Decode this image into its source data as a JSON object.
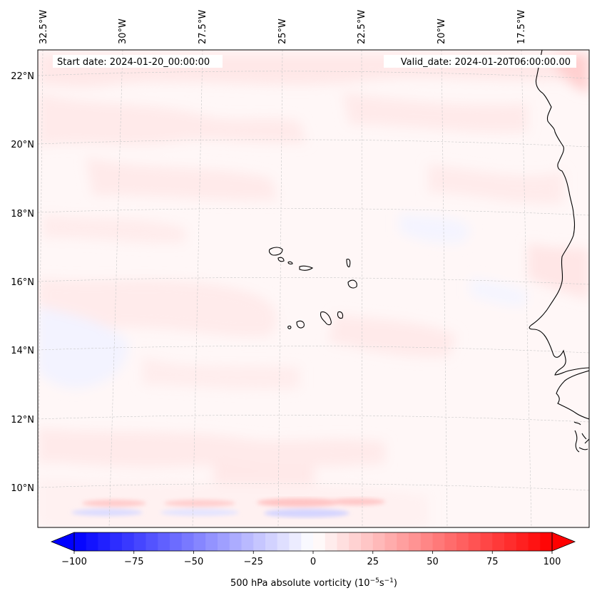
{
  "header": {
    "start_date": "Start date: 2024-01-20_00:00:00",
    "valid_date": "Valid_date: 2024-01-20T06:00:00.00"
  },
  "longitude_labels": [
    "32.5°W",
    "30°W",
    "27.5°W",
    "25°W",
    "22.5°W",
    "20°W",
    "17.5°W"
  ],
  "latitude_labels": [
    "22°N",
    "20°N",
    "18°N",
    "16°N",
    "14°N",
    "12°N",
    "10°N"
  ],
  "colorbar": {
    "label_prefix": "500 hPa absolute vorticity (10",
    "label_exp1": "−5",
    "label_mid": "s",
    "label_exp2": "−1",
    "label_suffix": ")",
    "ticks": [
      "−100",
      "−75",
      "−50",
      "−25",
      "0",
      "25",
      "50",
      "75",
      "100"
    ],
    "vmin": -100,
    "vmax": 100,
    "n_levels": 41,
    "colormap": "bwr"
  },
  "colors": {
    "low": "#0000ff",
    "mid": "#ffffff",
    "high": "#ff0000",
    "coastline": "#000000",
    "gridline": "#c8c8c8"
  }
}
